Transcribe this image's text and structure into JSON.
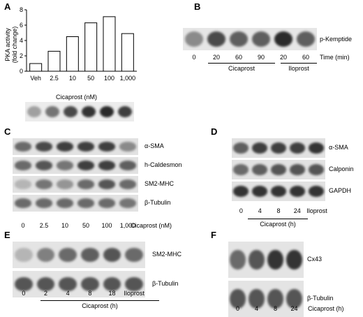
{
  "panels": {
    "A": {
      "letter": "A",
      "chart_data": {
        "type": "bar",
        "categories": [
          "Veh",
          "2.5",
          "10",
          "50",
          "100",
          "1,000"
        ],
        "values": [
          1.0,
          2.6,
          4.5,
          6.3,
          7.1,
          4.9
        ],
        "ylabel": "PKA activity (fold change)",
        "xlabel": "Cicaprost (nM)",
        "ylim": [
          0,
          8
        ],
        "yticks": [
          "0",
          "2",
          "4",
          "6",
          "8"
        ],
        "grid": false
      },
      "ylabel_line1": "PKA activity",
      "ylabel_line2": "(fold change)",
      "band_intensities": [
        0.35,
        0.55,
        0.75,
        0.85,
        0.9,
        0.8
      ]
    },
    "B": {
      "letter": "B",
      "row_label": "p-Kemptide",
      "times": [
        "0",
        "20",
        "60",
        "90",
        "20",
        "60"
      ],
      "time_label": "Time (min)",
      "group1": "Cicaprost",
      "group2": "Iloprost",
      "band_intensities": [
        0.45,
        0.75,
        0.65,
        0.65,
        0.9,
        0.65
      ]
    },
    "C": {
      "letter": "C",
      "rows": [
        {
          "label": "α-SMA",
          "intensities": [
            0.6,
            0.75,
            0.8,
            0.8,
            0.8,
            0.45
          ]
        },
        {
          "label": "h-Caldesmon",
          "intensities": [
            0.6,
            0.7,
            0.55,
            0.8,
            0.8,
            0.65
          ]
        },
        {
          "label": "SM2-MHC",
          "intensities": [
            0.25,
            0.55,
            0.4,
            0.6,
            0.7,
            0.6
          ]
        },
        {
          "label": "β-Tubulin",
          "intensities": [
            0.6,
            0.6,
            0.6,
            0.6,
            0.6,
            0.55
          ]
        }
      ],
      "ticks": [
        "0",
        "2.5",
        "10",
        "50",
        "100",
        "1,000"
      ],
      "unit_label": "Cicaprost (nM)"
    },
    "D": {
      "letter": "D",
      "rows": [
        {
          "label": "α-SMA",
          "intensities": [
            0.65,
            0.8,
            0.8,
            0.8,
            0.85
          ]
        },
        {
          "label": "Calponin",
          "intensities": [
            0.6,
            0.65,
            0.7,
            0.7,
            0.7
          ]
        },
        {
          "label": "GAPDH",
          "intensities": [
            0.85,
            0.85,
            0.85,
            0.85,
            0.85
          ]
        }
      ],
      "ticks": [
        "0",
        "4",
        "8",
        "24",
        "Iloprost"
      ],
      "group_label": "Cicaprost (h)"
    },
    "E": {
      "letter": "E",
      "rows": [
        {
          "label": "SM2-MHC",
          "intensities": [
            0.25,
            0.5,
            0.6,
            0.65,
            0.7,
            0.6
          ]
        },
        {
          "label": "β-Tubulin",
          "intensities": [
            0.7,
            0.7,
            0.7,
            0.7,
            0.7,
            0.7
          ]
        }
      ],
      "ticks": [
        "0",
        "2",
        "4",
        "8",
        "18",
        "Iloprost"
      ],
      "group_label": "Cicaprost (h)"
    },
    "F": {
      "letter": "F",
      "rows": [
        {
          "label": "Cx43",
          "intensities": [
            0.6,
            0.7,
            0.85,
            0.85
          ]
        },
        {
          "label": "β-Tubulin",
          "intensities": [
            0.7,
            0.7,
            0.7,
            0.7
          ]
        }
      ],
      "ticks": [
        "0",
        "4",
        "8",
        "24"
      ],
      "unit_label": "Cicaprost (h)"
    }
  }
}
